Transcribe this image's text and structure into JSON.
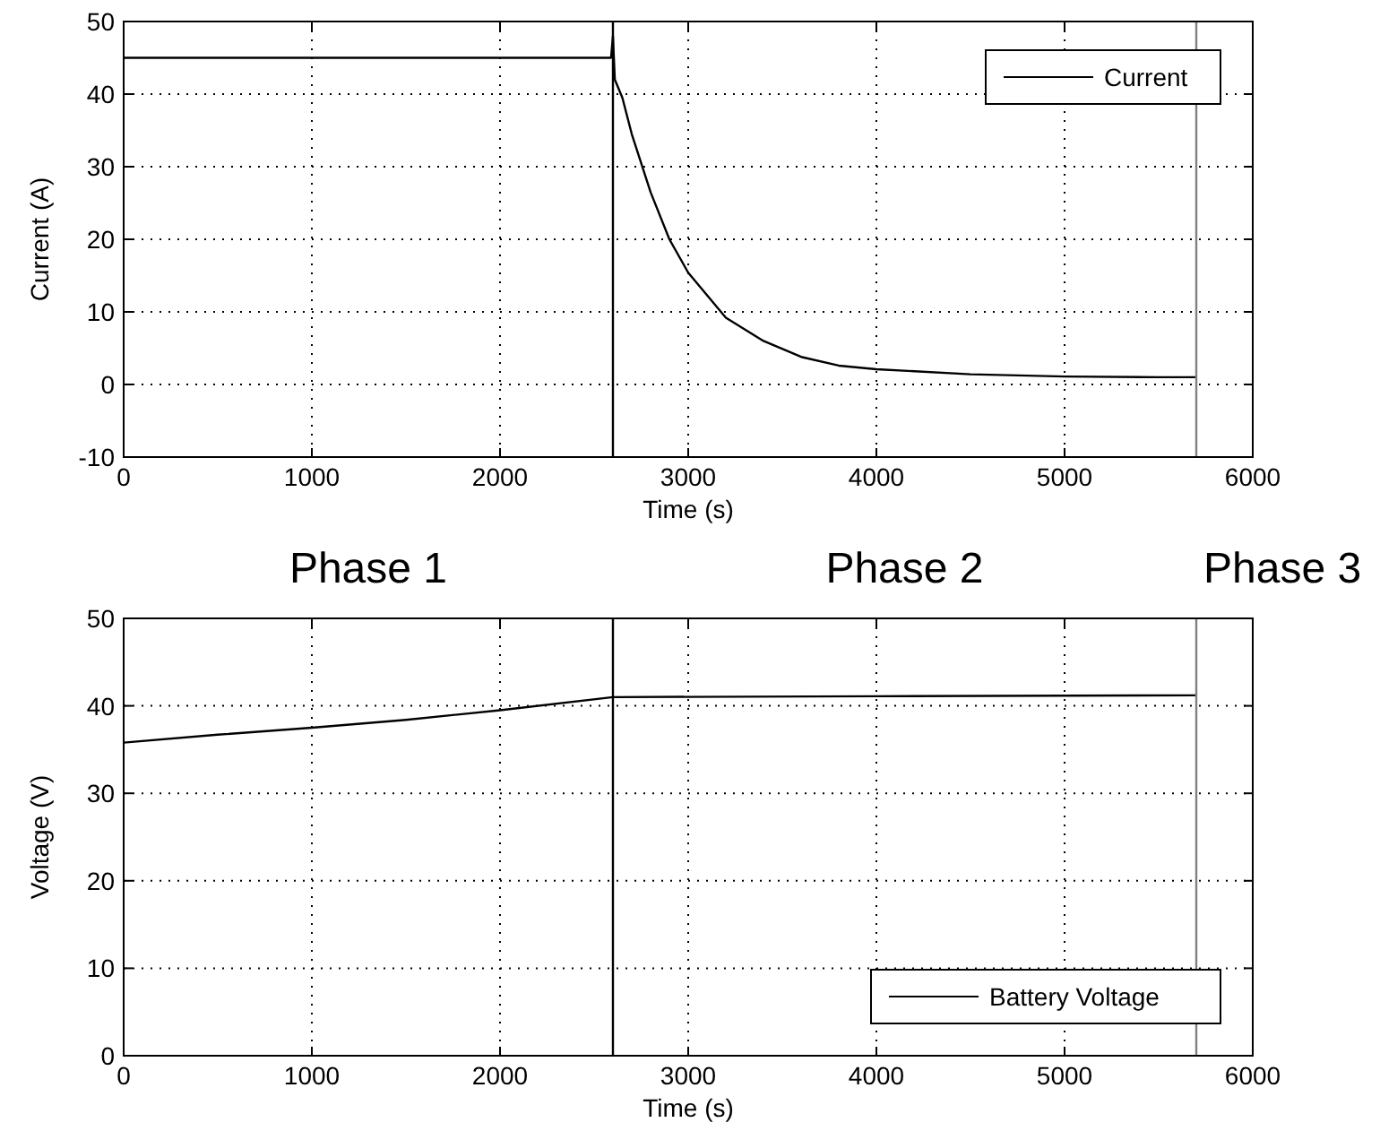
{
  "chart_data": [
    {
      "type": "line",
      "xlabel": "Time (s)",
      "ylabel": "Current (A)",
      "xlim": [
        0,
        6000
      ],
      "xticks": [
        0,
        1000,
        2000,
        3000,
        4000,
        5000,
        6000
      ],
      "ylim": [
        -10,
        50
      ],
      "yticks": [
        -10,
        0,
        10,
        20,
        30,
        40,
        50
      ],
      "grid": true,
      "legend": "top right",
      "series": [
        {
          "name": "Current",
          "color": "#000000",
          "x": [
            0,
            2590,
            2600,
            2610,
            2650,
            2700,
            2800,
            2900,
            3000,
            3200,
            3400,
            3600,
            3800,
            4000,
            4500,
            5000,
            5500,
            5700
          ],
          "values": [
            45,
            45,
            48,
            42,
            39.5,
            34.5,
            26.5,
            20,
            15.4,
            9.2,
            6,
            3.8,
            2.6,
            2.1,
            1.4,
            1.1,
            1,
            1
          ]
        }
      ],
      "ref_lines": [
        {
          "axis": "x",
          "value": 2600,
          "color": "#000000"
        },
        {
          "axis": "x",
          "value": 5700,
          "color": "#808080"
        }
      ]
    },
    {
      "type": "line",
      "xlabel": "Time (s)",
      "ylabel": "Voltage (V)",
      "xlim": [
        0,
        6000
      ],
      "xticks": [
        0,
        1000,
        2000,
        3000,
        4000,
        5000,
        6000
      ],
      "ylim": [
        0,
        50
      ],
      "yticks": [
        0,
        10,
        20,
        30,
        40,
        50
      ],
      "grid": true,
      "legend": "bottom right",
      "series": [
        {
          "name": "Battery Voltage",
          "color": "#000000",
          "x": [
            0,
            500,
            1000,
            1500,
            2000,
            2600,
            4000,
            5700
          ],
          "values": [
            35.8,
            36.7,
            37.5,
            38.4,
            39.5,
            41,
            41.1,
            41.2
          ]
        }
      ],
      "ref_lines": [
        {
          "axis": "x",
          "value": 2600,
          "color": "#000000"
        },
        {
          "axis": "x",
          "value": 5700,
          "color": "#808080"
        }
      ],
      "annotations": [
        "Phase 1",
        "Phase 2",
        "Phase 3"
      ]
    }
  ]
}
